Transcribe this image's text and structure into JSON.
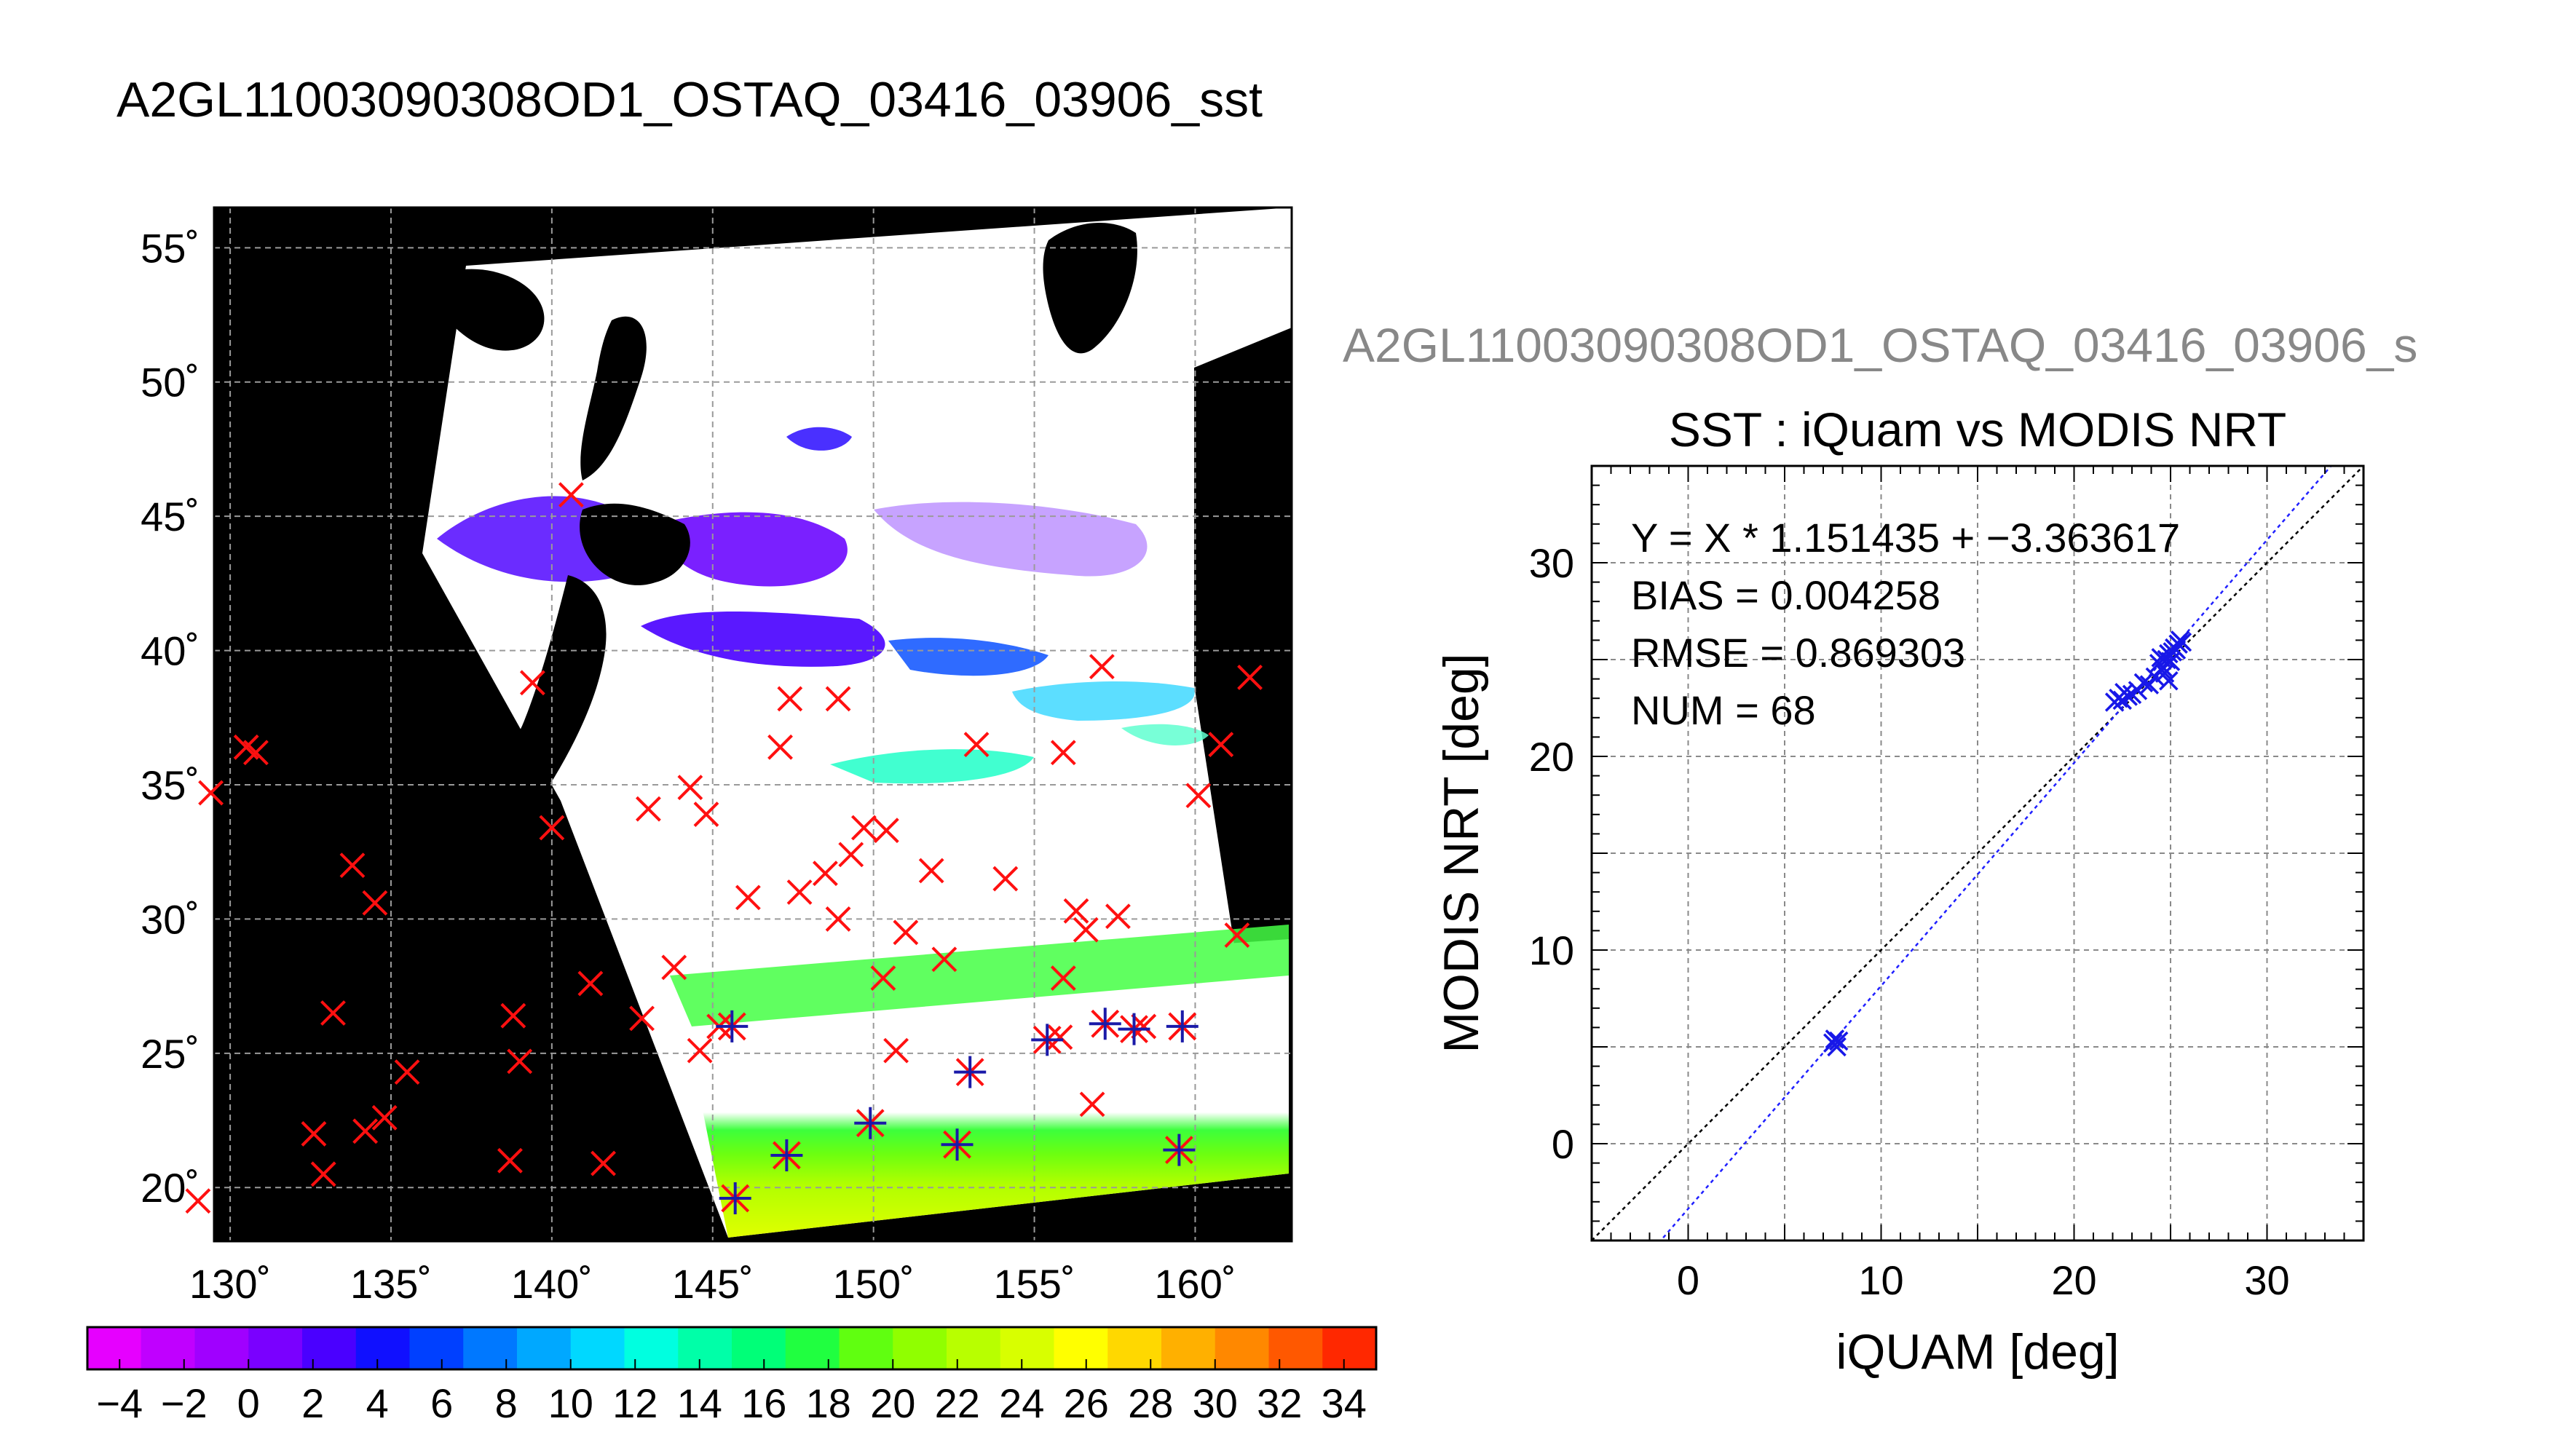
{
  "page_title": "A2GL11003090308OD1_OSTAQ_03416_03906_sst",
  "chart_data": [
    {
      "type": "map",
      "xlim": [
        129.5,
        163
      ],
      "ylim": [
        18,
        56.5
      ],
      "x_ticks": [
        130,
        135,
        140,
        145,
        150,
        155,
        160
      ],
      "y_ticks": [
        20,
        25,
        30,
        35,
        40,
        45,
        50,
        55
      ],
      "x_tick_labels": [
        "130˚",
        "135˚",
        "140˚",
        "145˚",
        "150˚",
        "155˚",
        "160˚"
      ],
      "y_tick_labels": [
        "20˚",
        "25˚",
        "30˚",
        "35˚",
        "40˚",
        "45˚",
        "50˚",
        "55˚"
      ],
      "grid": true,
      "background": "#000000",
      "colorbar": {
        "range": [
          -5,
          35
        ],
        "tick_values": [
          -4,
          -2,
          0,
          2,
          4,
          6,
          8,
          10,
          12,
          14,
          16,
          18,
          20,
          22,
          24,
          26,
          28,
          30,
          32,
          34
        ],
        "tick_labels": [
          "−4",
          "−2",
          "0",
          "2",
          "4",
          "6",
          "8",
          "10",
          "12",
          "14",
          "16",
          "18",
          "20",
          "22",
          "24",
          "26",
          "28",
          "30",
          "32",
          "34"
        ],
        "colors": [
          "#e600ff",
          "#c000ff",
          "#a000ff",
          "#7a00ff",
          "#4a00ff",
          "#1010ff",
          "#0040ff",
          "#0078ff",
          "#00a8ff",
          "#00d8ff",
          "#00ffe0",
          "#00ffa8",
          "#00ff78",
          "#20ff40",
          "#60ff10",
          "#90ff00",
          "#b8ff00",
          "#d8ff00",
          "#ffff00",
          "#ffd800",
          "#ffb000",
          "#ff8800",
          "#ff5800",
          "#ff2800"
        ]
      },
      "red_x_points": [
        [
          129.4,
          34.7
        ],
        [
          130.5,
          36.4
        ],
        [
          130.8,
          36.2
        ],
        [
          133.8,
          32.0
        ],
        [
          134.5,
          30.6
        ],
        [
          133.2,
          26.5
        ],
        [
          135.5,
          24.3
        ],
        [
          134.2,
          22.1
        ],
        [
          132.6,
          22.0
        ],
        [
          132.9,
          20.5
        ],
        [
          129.0,
          19.5
        ],
        [
          134.8,
          22.6
        ],
        [
          138.8,
          26.4
        ],
        [
          139.0,
          24.7
        ],
        [
          138.7,
          21.0
        ],
        [
          141.6,
          20.9
        ],
        [
          141.2,
          27.6
        ],
        [
          142.8,
          26.3
        ],
        [
          143.8,
          28.2
        ],
        [
          144.6,
          25.1
        ],
        [
          145.2,
          26.0
        ],
        [
          146.1,
          30.8
        ],
        [
          147.7,
          31.0
        ],
        [
          148.5,
          31.7
        ],
        [
          148.9,
          30.0
        ],
        [
          149.3,
          32.4
        ],
        [
          149.7,
          33.4
        ],
        [
          150.4,
          33.3
        ],
        [
          150.3,
          27.8
        ],
        [
          151.0,
          29.5
        ],
        [
          150.7,
          25.1
        ],
        [
          151.8,
          31.8
        ],
        [
          152.2,
          28.5
        ],
        [
          153.2,
          36.5
        ],
        [
          154.1,
          31.5
        ],
        [
          155.8,
          25.6
        ],
        [
          155.9,
          27.8
        ],
        [
          156.3,
          30.3
        ],
        [
          156.6,
          29.6
        ],
        [
          157.6,
          30.1
        ],
        [
          156.8,
          23.1
        ],
        [
          158.4,
          26.0
        ],
        [
          160.1,
          34.6
        ],
        [
          160.8,
          36.5
        ],
        [
          161.3,
          29.4
        ],
        [
          161.7,
          39.0
        ],
        [
          157.1,
          39.4
        ],
        [
          155.9,
          36.2
        ],
        [
          147.4,
          38.2
        ],
        [
          147.1,
          36.4
        ],
        [
          148.9,
          38.2
        ],
        [
          143.0,
          34.1
        ],
        [
          144.3,
          34.9
        ],
        [
          144.8,
          33.9
        ],
        [
          139.4,
          38.8
        ],
        [
          140.6,
          45.8
        ],
        [
          140.0,
          33.4
        ]
      ],
      "blue_star_points": [
        [
          145.6,
          26.0
        ],
        [
          145.7,
          19.6
        ],
        [
          147.3,
          21.2
        ],
        [
          149.9,
          22.4
        ],
        [
          152.6,
          21.6
        ],
        [
          153.0,
          24.3
        ],
        [
          155.4,
          25.5
        ],
        [
          157.2,
          26.1
        ],
        [
          158.1,
          25.9
        ],
        [
          159.6,
          26.0
        ],
        [
          159.5,
          21.4
        ]
      ]
    },
    {
      "type": "scatter",
      "title": "SST : iQuam vs MODIS NRT",
      "subtitle": "A2GL11003090308OD1_OSTAQ_03416_03906_s",
      "xlabel": "iQUAM [deg]",
      "ylabel": "MODIS NRT [deg]",
      "xlim": [
        -5,
        35
      ],
      "ylim": [
        -5,
        35
      ],
      "x_ticks": [
        0,
        10,
        20,
        30
      ],
      "y_ticks": [
        0,
        10,
        20,
        30
      ],
      "grid": true,
      "annotations": [
        "Y = X * 1.151435 + −3.363617",
        "BIAS = 0.004258",
        "RMSE = 0.869303",
        "NUM = 68"
      ],
      "fit": {
        "slope": 1.151435,
        "intercept": -3.363617,
        "color": "#2020ff"
      },
      "one_to_one": {
        "color": "#000000"
      },
      "points": [
        [
          7.6,
          5.4
        ],
        [
          7.7,
          5.0
        ],
        [
          7.5,
          5.2
        ],
        [
          7.8,
          5.3
        ],
        [
          22.1,
          22.8
        ],
        [
          22.3,
          23.0
        ],
        [
          22.5,
          22.9
        ],
        [
          22.8,
          23.1
        ],
        [
          22.6,
          23.3
        ],
        [
          23.0,
          23.2
        ],
        [
          23.3,
          23.4
        ],
        [
          23.6,
          23.8
        ],
        [
          23.9,
          23.7
        ],
        [
          24.2,
          24.1
        ],
        [
          24.4,
          24.8
        ],
        [
          24.6,
          24.6
        ],
        [
          24.8,
          25.0
        ],
        [
          24.9,
          25.3
        ],
        [
          25.1,
          25.4
        ],
        [
          25.2,
          25.6
        ],
        [
          25.4,
          25.8
        ],
        [
          25.5,
          26.0
        ],
        [
          25.0,
          24.9
        ],
        [
          24.7,
          24.3
        ],
        [
          24.9,
          23.9
        ],
        [
          25.3,
          25.5
        ],
        [
          24.5,
          25.1
        ],
        [
          25.6,
          25.9
        ]
      ],
      "marker_color": "#1818e8"
    }
  ]
}
